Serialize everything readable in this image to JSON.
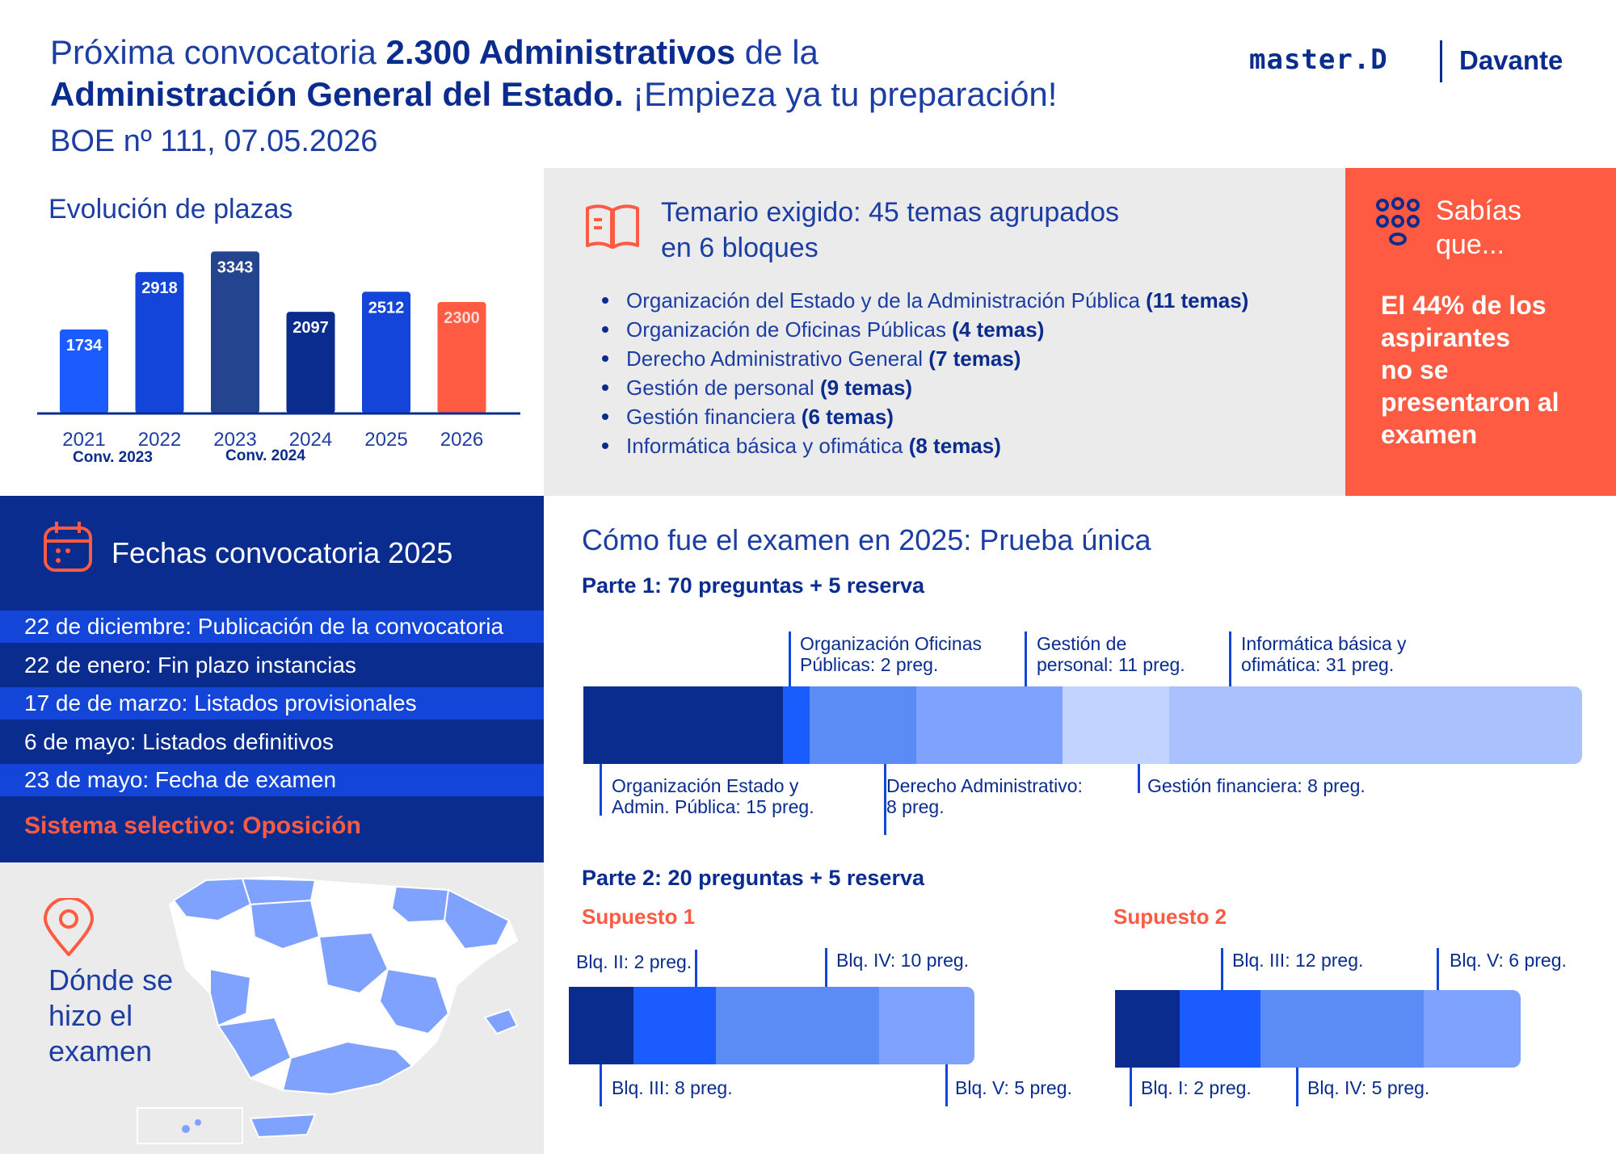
{
  "header": {
    "title_part1": "Próxima convocatoria ",
    "title_bold1": "2.300 Administrativos",
    "title_part2": " de la",
    "title_bold2": "Administración General del Estado.",
    "title_part3": " ¡Empieza ya tu preparación!",
    "boe": "BOE nº 111, 07.05.2026",
    "logo_master": "master.D",
    "logo_davante": "Davante"
  },
  "evolucion": {
    "title": "Evolución de plazas",
    "conv_labels": [
      "Conv. 2023",
      "Conv. 2024"
    ]
  },
  "chart_data": {
    "type": "bar",
    "title": "Evolución de plazas",
    "categories": [
      "2021",
      "2022",
      "2023",
      "2024",
      "2025",
      "2026"
    ],
    "values": [
      1734,
      2918,
      3343,
      2097,
      2512,
      2300
    ],
    "colors": [
      "#1a5cff",
      "#1346d8",
      "#24448f",
      "#0b2c8f",
      "#1346d8",
      "#ff5a42"
    ],
    "value_labels": [
      "1734",
      "2918",
      "3343",
      "2097",
      "2512",
      "2300"
    ],
    "ylim": [
      0,
      3500
    ]
  },
  "temario": {
    "title_line1": "Temario exigido: 45 temas agrupados",
    "title_line2": "en 6 bloques",
    "items": [
      {
        "text": "Organización del Estado y de la Administración Pública ",
        "count": "(11 temas)"
      },
      {
        "text": "Organización de Oficinas Públicas ",
        "count": "(4 temas)"
      },
      {
        "text": "Derecho Administrativo General ",
        "count": "(7 temas)"
      },
      {
        "text": "Gestión de personal ",
        "count": "(9 temas)"
      },
      {
        "text": "Gestión financiera ",
        "count": "(6 temas)"
      },
      {
        "text": "Informática básica y ofimática ",
        "count": "(8 temas)"
      }
    ]
  },
  "sabias": {
    "title_line1": "Sabías",
    "title_line2": "que...",
    "text_lines": [
      "El 44% de los",
      "aspirantes",
      "no se",
      "presentaron al",
      "examen"
    ]
  },
  "fechas": {
    "title": "Fechas convocatoria 2025",
    "rows": [
      "22 de diciembre: Publicación de la convocatoria",
      "22 de enero: Fin plazo instancias",
      "17 de de marzo: Listados provisionales",
      "6 de mayo: Listados definitivos",
      "23 de mayo: Fecha de examen"
    ],
    "sistema": "Sistema selectivo: Oposición"
  },
  "mapa": {
    "title_lines": [
      "Dónde se",
      "hizo el",
      "examen"
    ]
  },
  "examen": {
    "title": "Cómo fue el examen en 2025: Prueba única",
    "parte1": {
      "title": "Parte 1: 70 preguntas + 5 reserva",
      "segments": [
        {
          "label": "Organización Estado y\nAdmin. Pública: 15 preg.",
          "line1": "Organización Estado y",
          "line2": "Admin. Pública: 15 preg.",
          "value": 15,
          "color": "#0b2c8f"
        },
        {
          "line1": "Organización Oficinas",
          "line2": "Públicas: 2 preg.",
          "value": 2,
          "color": "#1a5cff"
        },
        {
          "line1": "Derecho Administrativo:",
          "line2": "8 preg.",
          "value": 8,
          "color": "#5b8bf5"
        },
        {
          "line1": "Gestión de",
          "line2": "personal: 11 preg.",
          "value": 11,
          "color": "#7fa2ff"
        },
        {
          "line1": "Gestión financiera: 8 preg.",
          "line2": "",
          "value": 8,
          "color": "#c2d3ff"
        },
        {
          "line1": "Informática básica y",
          "line2": "ofimática: 31 preg.",
          "value": 31,
          "color": "#a9c1ff"
        }
      ]
    },
    "parte2": {
      "title": "Parte 2: 20 preguntas + 5 reserva",
      "supuesto1": {
        "title": "Supuesto 1",
        "labels": [
          "Blq. II: 2 preg.",
          "Blq. III: 8 preg.",
          "Blq. IV: 10 preg.",
          "Blq. V: 5 preg."
        ]
      },
      "supuesto2": {
        "title": "Supuesto 2",
        "labels": [
          "Blq. I: 2  preg.",
          "Blq. III: 12 preg.",
          "Blq. IV: 5 preg.",
          "Blq. V: 6 preg."
        ]
      }
    }
  }
}
